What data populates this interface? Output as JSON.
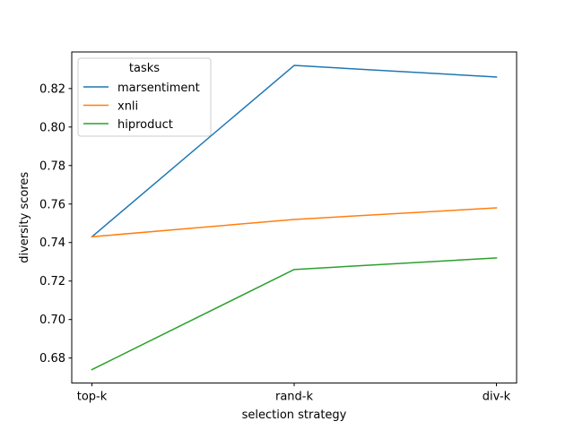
{
  "chart_data": {
    "type": "line",
    "title": "",
    "xlabel": "selection strategy",
    "ylabel": "diversity scores",
    "categories": [
      "top-k",
      "rand-k",
      "div-k"
    ],
    "ylim": [
      0.667,
      0.839
    ],
    "yticks": [
      0.68,
      0.7,
      0.72,
      0.74,
      0.76,
      0.78,
      0.8,
      0.82
    ],
    "ytick_labels": [
      "0.68",
      "0.70",
      "0.72",
      "0.74",
      "0.76",
      "0.78",
      "0.80",
      "0.82"
    ],
    "grid": false,
    "legend": {
      "title": "tasks",
      "placement": "upper-left"
    },
    "series": [
      {
        "name": "marsentiment",
        "color": "#1f77b4",
        "values": [
          0.743,
          0.832,
          0.826
        ]
      },
      {
        "name": "xnli",
        "color": "#ff7f0e",
        "values": [
          0.743,
          0.752,
          0.758
        ]
      },
      {
        "name": "hiproduct",
        "color": "#2ca02c",
        "values": [
          0.674,
          0.726,
          0.732
        ]
      }
    ]
  }
}
